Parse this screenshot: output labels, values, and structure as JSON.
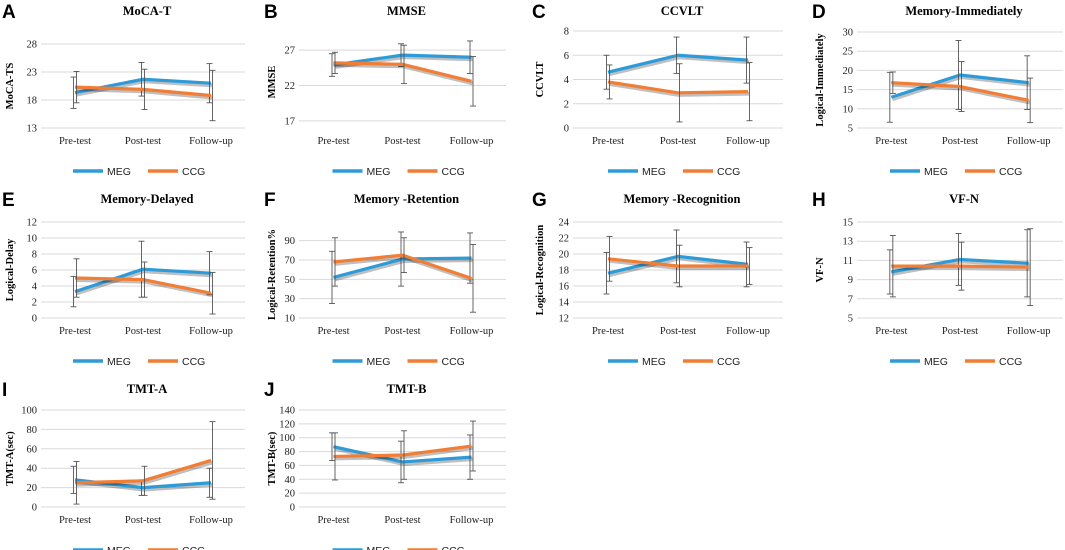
{
  "chart_data": [
    {
      "letter": "A",
      "title": "MoCA-T",
      "ylabel": "MoCA-TS",
      "type": "line",
      "yticks": [
        13,
        18,
        23,
        28
      ],
      "ylim": [
        13,
        28
      ],
      "categories": [
        "Pre-test",
        "Post-test",
        "Follow-up"
      ],
      "series": [
        {
          "name": "MEG",
          "color": "#2E9BD8",
          "values": [
            19.3,
            21.7,
            21.0
          ],
          "errors": [
            2.8,
            3.0,
            3.5
          ]
        },
        {
          "name": "CCG",
          "color": "#F27D34",
          "values": [
            20.3,
            19.9,
            18.8
          ],
          "errors": [
            2.8,
            3.6,
            4.5
          ]
        }
      ]
    },
    {
      "letter": "B",
      "title": "MMSE",
      "ylabel": "MMSE",
      "type": "line",
      "yticks": [
        17,
        22,
        27
      ],
      "ylim": [
        16,
        29
      ],
      "categories": [
        "Pre-test",
        "Post-test",
        "Follow-up"
      ],
      "series": [
        {
          "name": "MEG",
          "color": "#2E9BD8",
          "values": [
            24.9,
            26.3,
            26.0
          ],
          "errors": [
            1.6,
            1.6,
            2.3
          ]
        },
        {
          "name": "CCG",
          "color": "#F27D34",
          "values": [
            25.2,
            25.0,
            22.6
          ],
          "errors": [
            1.5,
            2.7,
            3.5
          ]
        }
      ]
    },
    {
      "letter": "C",
      "title": "CCVLT",
      "ylabel": "CCVLT",
      "type": "line",
      "yticks": [
        0,
        2,
        4,
        6,
        8
      ],
      "ylim": [
        0,
        8
      ],
      "categories": [
        "Pre-test",
        "Post-test",
        "Follow-up"
      ],
      "series": [
        {
          "name": "MEG",
          "color": "#2E9BD8",
          "values": [
            4.6,
            6.0,
            5.6
          ],
          "errors": [
            1.4,
            1.5,
            1.9
          ]
        },
        {
          "name": "CCG",
          "color": "#F27D34",
          "values": [
            3.8,
            2.9,
            3.0
          ],
          "errors": [
            1.4,
            2.4,
            2.4
          ]
        }
      ]
    },
    {
      "letter": "D",
      "title": "Memory-Immediately",
      "ylabel": "Logical-Immediately",
      "type": "line",
      "yticks": [
        5,
        10,
        15,
        20,
        25,
        30
      ],
      "ylim": [
        5,
        30
      ],
      "categories": [
        "Pre-test",
        "Post-test",
        "Follow-up"
      ],
      "series": [
        {
          "name": "MEG",
          "color": "#2E9BD8",
          "values": [
            13.0,
            18.8,
            16.8
          ],
          "errors": [
            6.5,
            9.0,
            7.0
          ]
        },
        {
          "name": "CCG",
          "color": "#F27D34",
          "values": [
            16.8,
            15.8,
            12.2
          ],
          "errors": [
            2.8,
            6.5,
            5.8
          ]
        }
      ]
    },
    {
      "letter": "E",
      "title": "Memory-Delayed",
      "ylabel": "Logical-Delay",
      "type": "line",
      "yticks": [
        0,
        2,
        4,
        6,
        8,
        10,
        12
      ],
      "ylim": [
        0,
        12
      ],
      "categories": [
        "Pre-test",
        "Post-test",
        "Follow-up"
      ],
      "series": [
        {
          "name": "MEG",
          "color": "#2E9BD8",
          "values": [
            3.3,
            6.1,
            5.6
          ],
          "errors": [
            1.9,
            3.5,
            2.7
          ]
        },
        {
          "name": "CCG",
          "color": "#F27D34",
          "values": [
            5.0,
            4.8,
            3.1
          ],
          "errors": [
            2.4,
            2.2,
            2.6
          ]
        }
      ]
    },
    {
      "letter": "F",
      "title": "Memory -Retention",
      "ylabel": "Logical-Retention%",
      "type": "line",
      "yticks": [
        10,
        30,
        50,
        70,
        90
      ],
      "ylim": [
        10,
        100
      ],
      "categories": [
        "Pre-test",
        "Post-test",
        "Follow-up"
      ],
      "series": [
        {
          "name": "MEG",
          "color": "#2E9BD8",
          "values": [
            52,
            71,
            72
          ],
          "errors": [
            27,
            28,
            26
          ]
        },
        {
          "name": "CCG",
          "color": "#F27D34",
          "values": [
            68,
            75,
            51
          ],
          "errors": [
            25,
            18,
            35
          ]
        }
      ]
    },
    {
      "letter": "G",
      "title": "Memory -Recognition",
      "ylabel": "Logical-Recognition",
      "type": "line",
      "yticks": [
        12,
        14,
        16,
        18,
        20,
        22,
        24
      ],
      "ylim": [
        12,
        24
      ],
      "categories": [
        "Pre-test",
        "Post-test",
        "Follow-up"
      ],
      "series": [
        {
          "name": "MEG",
          "color": "#2E9BD8",
          "values": [
            17.6,
            19.7,
            18.7
          ],
          "errors": [
            2.6,
            3.3,
            2.8
          ]
        },
        {
          "name": "CCG",
          "color": "#F27D34",
          "values": [
            19.4,
            18.5,
            18.5
          ],
          "errors": [
            2.8,
            2.6,
            2.3
          ]
        }
      ]
    },
    {
      "letter": "H",
      "title": "VF-N",
      "ylabel": "VF-N",
      "type": "line",
      "yticks": [
        5,
        7,
        9,
        11,
        13,
        15
      ],
      "ylim": [
        5,
        15
      ],
      "categories": [
        "Pre-test",
        "Post-test",
        "Follow-up"
      ],
      "series": [
        {
          "name": "MEG",
          "color": "#2E9BD8",
          "values": [
            9.8,
            11.1,
            10.7
          ],
          "errors": [
            2.3,
            2.7,
            3.5
          ]
        },
        {
          "name": "CCG",
          "color": "#F27D34",
          "values": [
            10.4,
            10.4,
            10.3
          ],
          "errors": [
            3.2,
            2.5,
            4.0
          ]
        }
      ]
    },
    {
      "letter": "I",
      "title": "TMT-A",
      "ylabel": "TMT-A(sec)",
      "type": "line",
      "yticks": [
        0,
        20,
        40,
        60,
        80,
        100
      ],
      "ylim": [
        0,
        100
      ],
      "categories": [
        "Pre-test",
        "Post-test",
        "Follow-up"
      ],
      "series": [
        {
          "name": "MEG",
          "color": "#2E9BD8",
          "values": [
            28,
            20,
            25
          ],
          "errors": [
            14,
            8,
            15
          ]
        },
        {
          "name": "CCG",
          "color": "#F27D34",
          "values": [
            25,
            27,
            48
          ],
          "errors": [
            22,
            15,
            40
          ]
        }
      ]
    },
    {
      "letter": "J",
      "title": "TMT-B",
      "ylabel": "TMT-B(sec)",
      "type": "line",
      "yticks": [
        0,
        20,
        40,
        60,
        80,
        100,
        120,
        140
      ],
      "ylim": [
        0,
        140
      ],
      "categories": [
        "Pre-test",
        "Post-test",
        "Follow-up"
      ],
      "series": [
        {
          "name": "MEG",
          "color": "#2E9BD8",
          "values": [
            87,
            65,
            72
          ],
          "errors": [
            20,
            30,
            32
          ]
        },
        {
          "name": "CCG",
          "color": "#F27D34",
          "values": [
            73,
            75,
            88
          ],
          "errors": [
            34,
            35,
            36
          ]
        }
      ]
    }
  ]
}
